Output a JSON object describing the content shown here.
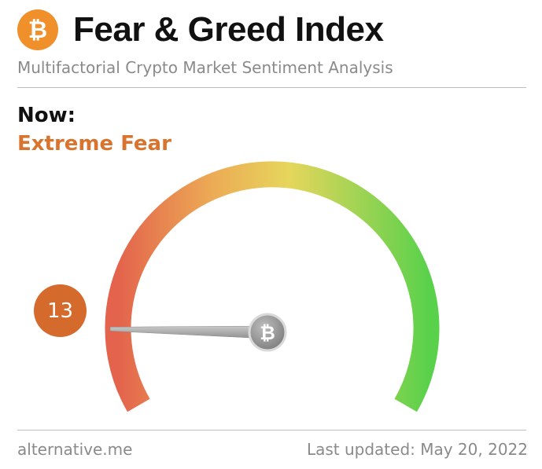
{
  "header": {
    "logo_symbol": "₿",
    "title": "Fear & Greed Index",
    "subtitle": "Multifactorial Crypto Market Sentiment Analysis"
  },
  "current": {
    "label": "Now:",
    "classification": "Extreme Fear",
    "value": 13,
    "value_text": "13",
    "scale_min": 0,
    "scale_max": 100
  },
  "gauge": {
    "hub_icon": "bitcoin-icon",
    "hub_symbol": "₿"
  },
  "footer": {
    "source": "alternative.me",
    "last_updated": "Last updated: May 20, 2022"
  },
  "colors": {
    "brand_orange": "#f0902b",
    "extreme_fear": "#d9742f",
    "badge": "#d46a2b",
    "gauge_red": "#e3634c",
    "gauge_orange": "#ecaa55",
    "gauge_yellow": "#e6d65c",
    "gauge_green": "#5ad14b"
  }
}
